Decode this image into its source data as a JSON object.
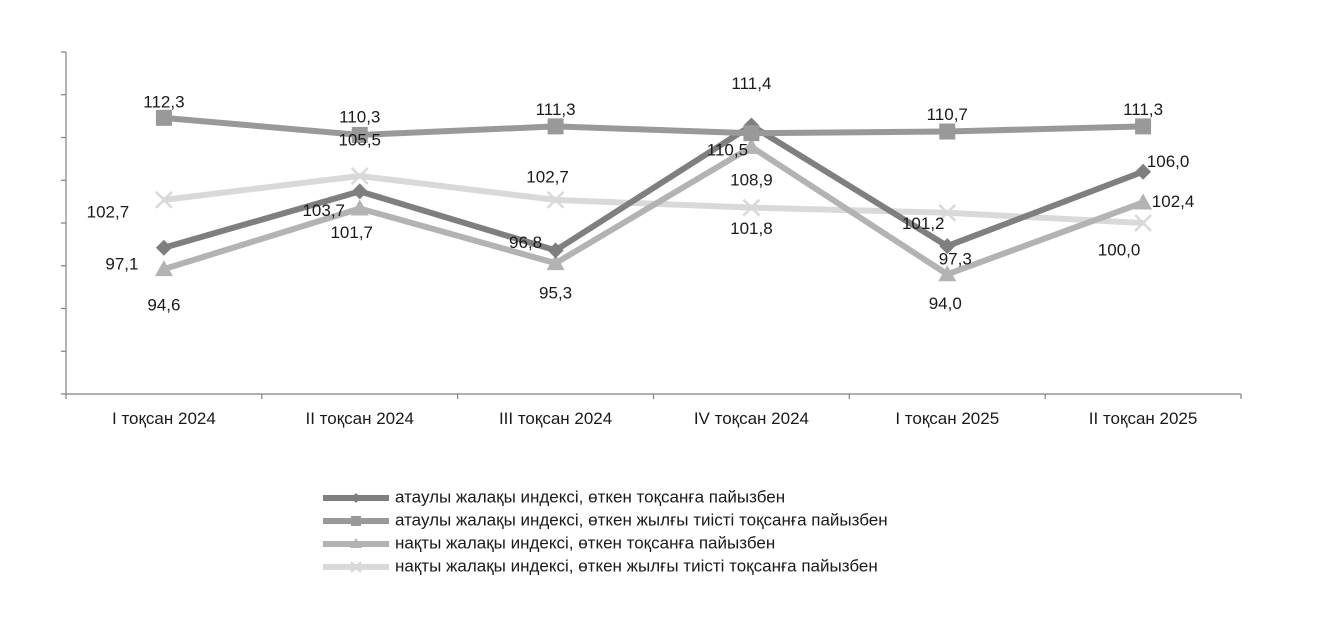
{
  "chart_data": {
    "type": "line",
    "title": "",
    "xlabel": "",
    "ylabel": "",
    "categories": [
      "I тоқсан 2024",
      "II тоқсан 2024",
      "III тоқсан 2024",
      "IV тоқсан 2024",
      "I тоқсан 2025",
      "II тоқсан 2025"
    ],
    "ylim": [
      80,
      120
    ],
    "y_tick_step": 5,
    "y_tick_labels_shown": false,
    "grid": false,
    "legend_position": "bottom",
    "series": [
      {
        "name": "атаулы жалақы индексі, өткен тоқсанға пайызбен",
        "values": [
          97.1,
          103.7,
          96.8,
          111.4,
          97.3,
          106.0
        ],
        "labels": [
          "97,1",
          "103,7",
          "96,8",
          "111,4",
          "97,3",
          "106,0"
        ],
        "color": "#7f7f7f",
        "marker": "diamond"
      },
      {
        "name": "атаулы жалақы индексі, өткен жылғы тиісті тоқсанға пайызбен",
        "values": [
          112.3,
          110.3,
          111.3,
          110.5,
          110.7,
          111.3
        ],
        "labels": [
          "112,3",
          "110,3",
          "111,3",
          "110,5",
          "110,7",
          "111,3"
        ],
        "color": "#999999",
        "marker": "square"
      },
      {
        "name": "нақты жалақы индексі, өткен тоқсанға пайызбен",
        "values": [
          94.6,
          101.7,
          95.3,
          108.9,
          94.0,
          102.4
        ],
        "labels": [
          "94,6",
          "101,7",
          "95,3",
          "108,9",
          "94,0",
          "102,4"
        ],
        "color": "#b3b3b3",
        "marker": "triangle"
      },
      {
        "name": "нақты жалақы индексі, өткен жылғы тиісті тоқсанға пайызбен",
        "values": [
          102.7,
          105.5,
          102.7,
          101.8,
          101.2,
          100.0
        ],
        "labels": [
          "102,7",
          "105,5",
          "102,7",
          "101,8",
          "101,2",
          "100,0"
        ],
        "color": "#d9d9d9",
        "marker": "x"
      }
    ]
  }
}
